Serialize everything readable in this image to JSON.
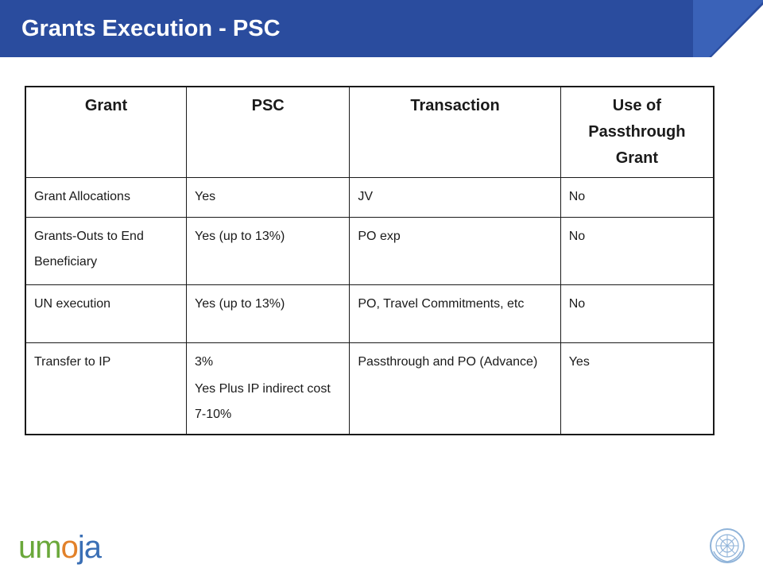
{
  "slide": {
    "title": "Grants Execution - PSC"
  },
  "table": {
    "headers": [
      "Grant",
      "PSC",
      "Transaction",
      "Use of Passthrough Grant"
    ],
    "rows": [
      [
        "Grant Allocations",
        "Yes",
        "JV",
        "No"
      ],
      [
        "Grants-Outs to End Beneficiary",
        "Yes (up to 13%)",
        "PO exp",
        "No"
      ],
      [
        "UN execution",
        "Yes (up to 13%)",
        "PO, Travel Commitments, etc",
        "No"
      ],
      [
        "Transfer to IP",
        "3%",
        "Passthrough and PO (Advance)",
        "Yes"
      ]
    ],
    "row4_psc_extra": "Yes Plus IP indirect cost 7-10%"
  },
  "footer": {
    "logo_text": "umoja",
    "logo_colors": [
      "#6aa83a",
      "#2a7fc1",
      "#e2812a",
      "#3a6fb5"
    ],
    "emblem_icon": "un-emblem-icon"
  },
  "colors": {
    "header_band": "#2a4c9e",
    "header_accent": "#3a62b8",
    "border": "#1a1a1a"
  }
}
